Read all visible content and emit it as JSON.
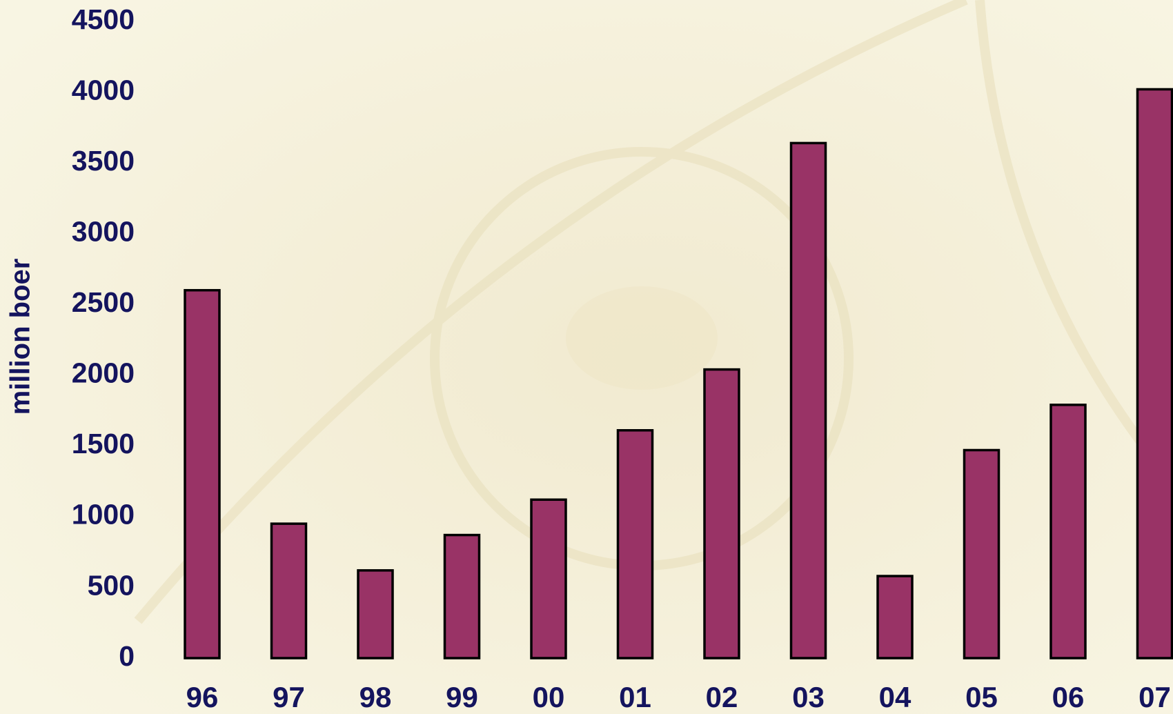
{
  "chart_data": {
    "type": "bar",
    "y_label": "million boer",
    "categories": [
      "96",
      "97",
      "98",
      "99",
      "00",
      "01",
      "02",
      "03",
      "04",
      "05",
      "06",
      "07"
    ],
    "values": [
      2600,
      950,
      620,
      870,
      1120,
      1610,
      2040,
      3640,
      580,
      1470,
      1790,
      4020
    ],
    "color": "#993366",
    "edge_color": "#000000",
    "ylim": [
      0,
      4500
    ],
    "yticks": [
      0,
      500,
      1000,
      1500,
      2000,
      2500,
      3000,
      3500,
      4000,
      4500
    ],
    "grid": false
  }
}
